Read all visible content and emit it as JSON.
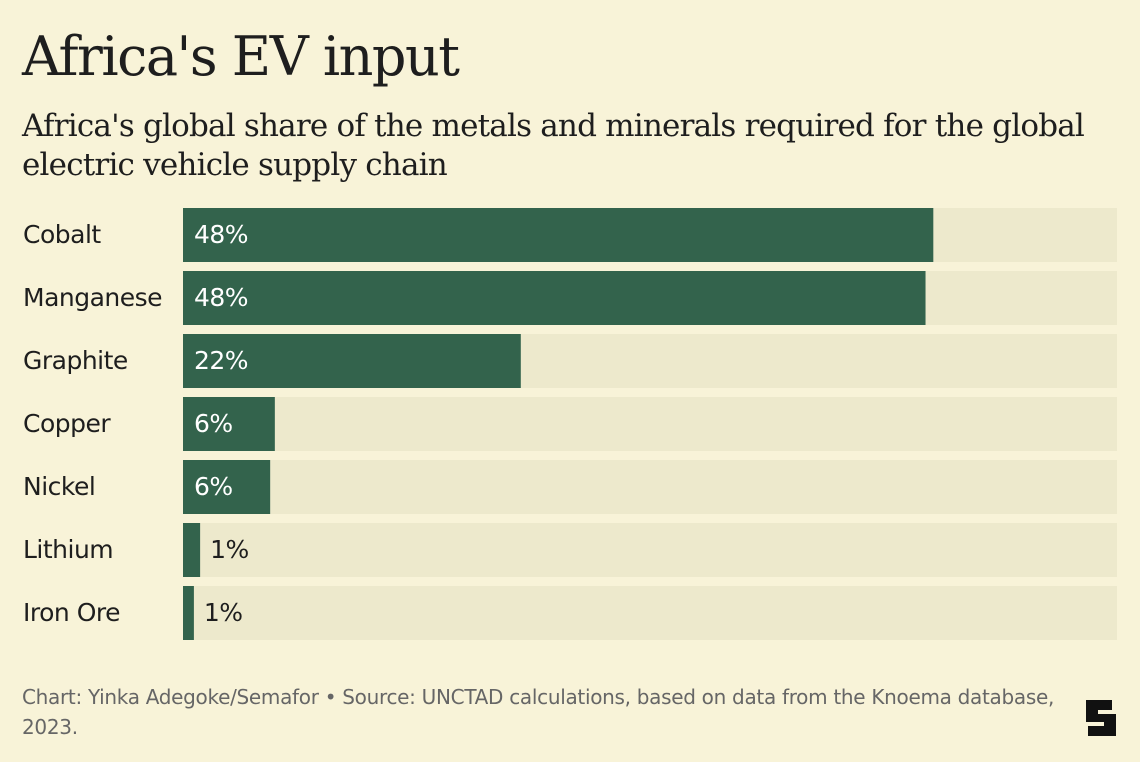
{
  "chart_data": {
    "type": "bar",
    "orientation": "horizontal",
    "title": "Africa's EV input",
    "subtitle": "Africa's global share of the metals and minerals required for the global electric vehicle supply chain",
    "categories": [
      "Cobalt",
      "Manganese",
      "Graphite",
      "Copper",
      "Nickel",
      "Lithium",
      "Iron Ore"
    ],
    "values": [
      48.2,
      47.7,
      21.7,
      5.9,
      5.6,
      1.1,
      0.7
    ],
    "value_labels": [
      "48%",
      "48%",
      "22%",
      "6%",
      "6%",
      "1%",
      "1%"
    ],
    "color": "#33634c",
    "xlim": [
      0,
      60
    ],
    "source": "Chart: Yinka Adegoke/Semafor • Source: UNCTAD calculations, based on data from the Knoema database, 2023."
  }
}
